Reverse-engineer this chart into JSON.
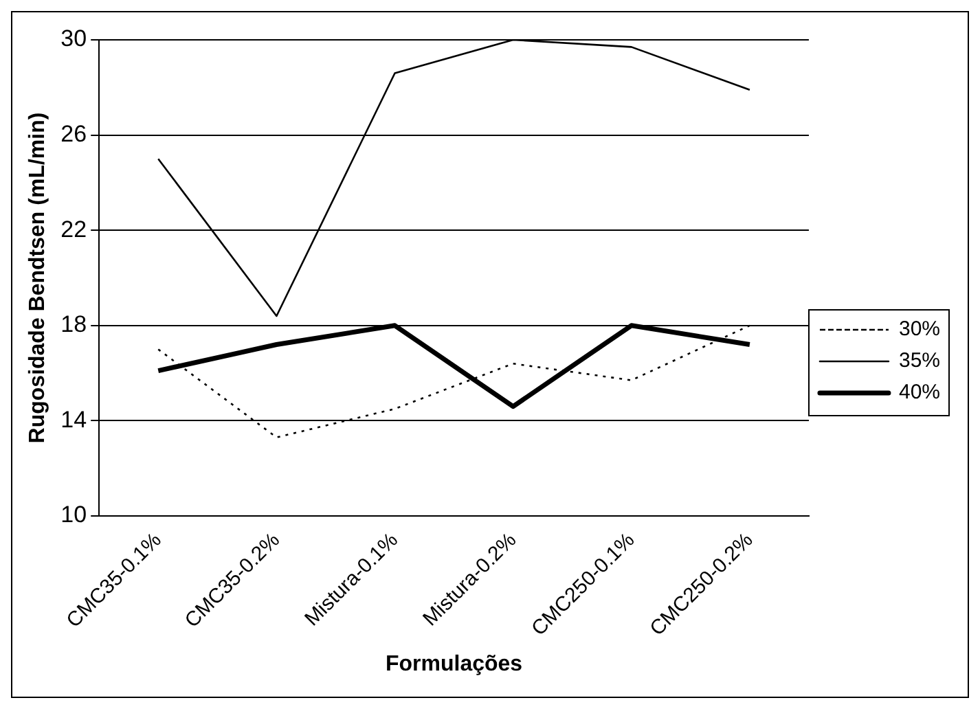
{
  "chart_data": {
    "type": "line",
    "xlabel": "Formulações",
    "ylabel": "Rugosidade Bendtsen (mL/min)",
    "categories": [
      "CMC35-0.1%",
      "CMC35-0.2%",
      "Mistura-0.1%",
      "Mistura-0.2%",
      "CMC250-0.1%",
      "CMC250-0.2%"
    ],
    "series": [
      {
        "name": "30%",
        "color": "#000000",
        "line_style": "dotted",
        "values": [
          17.0,
          13.3,
          14.5,
          16.4,
          15.7,
          18.0
        ]
      },
      {
        "name": "35%",
        "color": "#000000",
        "line_style": "solid",
        "values": [
          25.0,
          18.4,
          28.6,
          30.0,
          29.7,
          27.9
        ]
      },
      {
        "name": "40%",
        "color": "#000000",
        "line_style": "solid",
        "values": [
          16.1,
          17.2,
          18.0,
          14.6,
          18.0,
          17.2
        ]
      }
    ],
    "ylim": [
      10,
      30
    ],
    "yticks": [
      10,
      14,
      18,
      22,
      26,
      30
    ],
    "grid": "y",
    "legend": "right",
    "marker": "none"
  }
}
